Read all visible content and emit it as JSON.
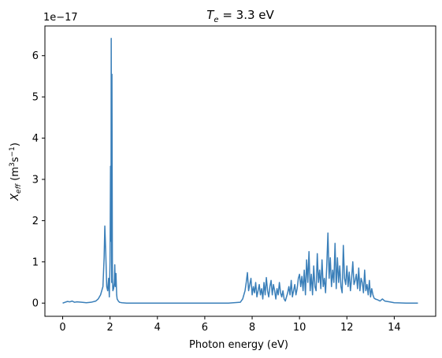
{
  "chart_data": {
    "type": "line",
    "title": "T_e = 3.3 eV",
    "title_parts": {
      "symbol": "T",
      "subscript": "e",
      "rest": " = 3.3 eV"
    },
    "xlabel": "Photon energy (eV)",
    "ylabel": "X_eff (m^3 s^-1)",
    "ylabel_parts": {
      "symbol": "X",
      "subscript": "eff",
      "unit_pre": " (m",
      "sup1": "3",
      "unit_mid": "s",
      "sup2": "−1",
      "unit_post": ")"
    },
    "offset_text": "1e−17",
    "xlim": [
      -0.75,
      15.75
    ],
    "ylim": [
      -0.32,
      6.72
    ],
    "y_scale_factor": 1e-17,
    "x_ticks": [
      0,
      2,
      4,
      6,
      8,
      10,
      12,
      14
    ],
    "x_tick_labels": [
      "0",
      "2",
      "4",
      "6",
      "8",
      "10",
      "12",
      "14"
    ],
    "y_ticks": [
      0,
      1,
      2,
      3,
      4,
      5,
      6
    ],
    "y_tick_labels": [
      "0",
      "1",
      "2",
      "3",
      "4",
      "5",
      "6"
    ],
    "grid": false,
    "line_color": "#3a7fb9",
    "series": [
      {
        "x": [
          0.0,
          0.1,
          0.2,
          0.3,
          0.4,
          0.5,
          0.6,
          0.8,
          1.0,
          1.2,
          1.4,
          1.5,
          1.6,
          1.7,
          1.75,
          1.78,
          1.82,
          1.86,
          1.9,
          1.94,
          1.97,
          2.0,
          2.02,
          2.04,
          2.05,
          2.07,
          2.08,
          2.1,
          2.12,
          2.15,
          2.18,
          2.2,
          2.22,
          2.25,
          2.28,
          2.3,
          2.35,
          2.4,
          2.5,
          2.7,
          3.0,
          4.0,
          5.0,
          6.0,
          7.0,
          7.5,
          7.6,
          7.7,
          7.75,
          7.8,
          7.85,
          7.9,
          7.95,
          8.0,
          8.05,
          8.1,
          8.15,
          8.2,
          8.25,
          8.3,
          8.35,
          8.4,
          8.45,
          8.5,
          8.55,
          8.6,
          8.65,
          8.7,
          8.75,
          8.8,
          8.85,
          8.9,
          8.95,
          9.0,
          9.05,
          9.1,
          9.15,
          9.2,
          9.25,
          9.3,
          9.35,
          9.4,
          9.45,
          9.5,
          9.55,
          9.6,
          9.65,
          9.7,
          9.75,
          9.8,
          9.85,
          9.9,
          9.95,
          10.0,
          10.05,
          10.1,
          10.15,
          10.2,
          10.25,
          10.3,
          10.35,
          10.4,
          10.45,
          10.5,
          10.55,
          10.6,
          10.65,
          10.7,
          10.75,
          10.8,
          10.85,
          10.9,
          10.95,
          11.0,
          11.05,
          11.1,
          11.15,
          11.2,
          11.25,
          11.3,
          11.35,
          11.4,
          11.45,
          11.5,
          11.55,
          11.6,
          11.65,
          11.7,
          11.75,
          11.8,
          11.85,
          11.9,
          11.95,
          12.0,
          12.05,
          12.1,
          12.15,
          12.2,
          12.25,
          12.3,
          12.35,
          12.4,
          12.45,
          12.5,
          12.55,
          12.6,
          12.65,
          12.7,
          12.75,
          12.8,
          12.85,
          12.9,
          12.95,
          13.0,
          13.05,
          13.1,
          13.15,
          13.2,
          13.3,
          13.4,
          13.5,
          13.6,
          13.8,
          14.0,
          14.5,
          15.0
        ],
        "y": [
          0.0,
          0.02,
          0.04,
          0.03,
          0.05,
          0.02,
          0.03,
          0.02,
          0.01,
          0.02,
          0.05,
          0.1,
          0.2,
          0.4,
          1.1,
          1.87,
          1.2,
          0.4,
          0.3,
          0.6,
          0.15,
          1.0,
          3.32,
          1.5,
          6.42,
          0.5,
          5.55,
          0.6,
          0.3,
          0.35,
          0.5,
          0.93,
          0.4,
          0.72,
          0.2,
          0.1,
          0.05,
          0.02,
          0.01,
          0.0,
          0.0,
          0.0,
          0.0,
          0.0,
          0.0,
          0.02,
          0.1,
          0.3,
          0.5,
          0.74,
          0.3,
          0.45,
          0.6,
          0.2,
          0.4,
          0.25,
          0.5,
          0.15,
          0.3,
          0.45,
          0.2,
          0.35,
          0.1,
          0.5,
          0.2,
          0.62,
          0.3,
          0.15,
          0.4,
          0.55,
          0.2,
          0.45,
          0.3,
          0.1,
          0.35,
          0.2,
          0.5,
          0.25,
          0.15,
          0.3,
          0.1,
          0.05,
          0.15,
          0.25,
          0.4,
          0.2,
          0.55,
          0.15,
          0.3,
          0.45,
          0.2,
          0.35,
          0.6,
          0.7,
          0.4,
          0.65,
          0.3,
          0.8,
          0.2,
          1.05,
          0.5,
          1.25,
          0.3,
          0.7,
          0.2,
          0.9,
          0.4,
          0.3,
          1.2,
          0.5,
          0.8,
          0.35,
          1.05,
          0.4,
          0.6,
          0.25,
          0.9,
          1.7,
          0.6,
          1.1,
          0.4,
          0.8,
          0.5,
          1.45,
          0.35,
          1.1,
          0.5,
          0.9,
          0.4,
          0.25,
          1.4,
          0.6,
          0.45,
          0.9,
          0.4,
          0.75,
          0.3,
          0.6,
          1.0,
          0.45,
          0.55,
          0.7,
          0.35,
          0.85,
          0.3,
          0.6,
          0.5,
          0.25,
          0.8,
          0.3,
          0.45,
          0.2,
          0.55,
          0.15,
          0.35,
          0.2,
          0.12,
          0.1,
          0.08,
          0.05,
          0.1,
          0.05,
          0.03,
          0.01,
          0.0,
          0.0
        ]
      }
    ]
  }
}
